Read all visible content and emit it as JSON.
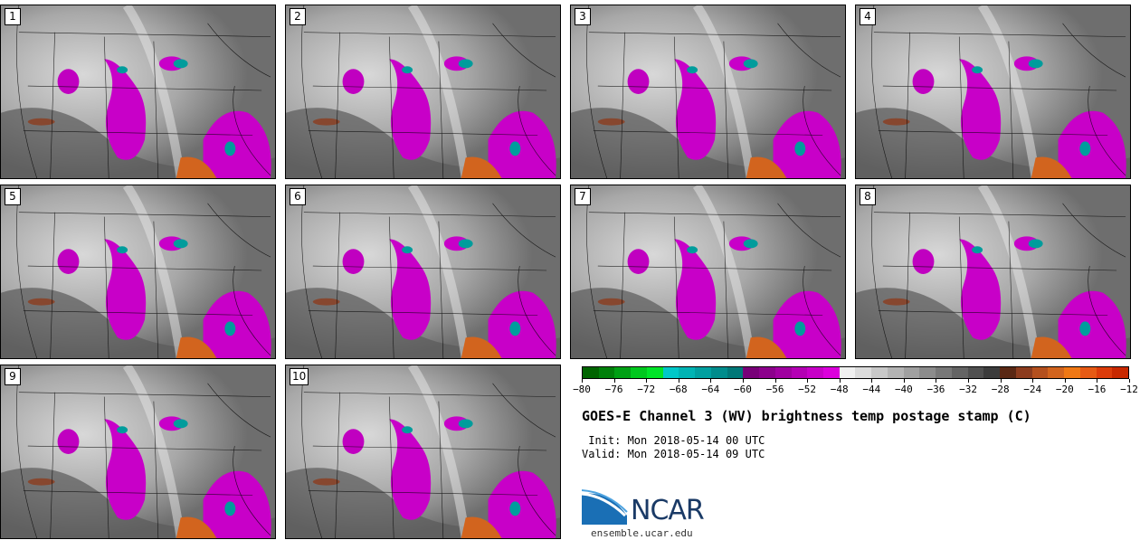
{
  "panels": [
    {
      "label": "1"
    },
    {
      "label": "2"
    },
    {
      "label": "3"
    },
    {
      "label": "4"
    },
    {
      "label": "5"
    },
    {
      "label": "6"
    },
    {
      "label": "7"
    },
    {
      "label": "8"
    },
    {
      "label": "9"
    },
    {
      "label": "10"
    }
  ],
  "colorbar": {
    "colors": [
      "#006400",
      "#00800a",
      "#00a014",
      "#00c81e",
      "#00e428",
      "#00c8c8",
      "#00b4b4",
      "#00a0a0",
      "#008c8c",
      "#007878",
      "#780078",
      "#8c008c",
      "#a000a0",
      "#b400b4",
      "#c800c8",
      "#dc00dc",
      "#f0f0f0",
      "#dcdcdc",
      "#c8c8c8",
      "#b4b4b4",
      "#a0a0a0",
      "#8c8c8c",
      "#787878",
      "#646464",
      "#505050",
      "#3c3c3c",
      "#5a2814",
      "#8c3c1e",
      "#b4501e",
      "#d2641e",
      "#f07814",
      "#e65a14",
      "#dc3c0a",
      "#c82800"
    ],
    "tick_labels": [
      "−80",
      "−76",
      "−72",
      "−68",
      "−64",
      "−60",
      "−56",
      "−52",
      "−48",
      "−44",
      "−40",
      "−36",
      "−32",
      "−28",
      "−24",
      "−20",
      "−16",
      "−12"
    ]
  },
  "title": "GOES-E Channel 3 (WV) brightness temp postage stamp (C)",
  "init": " Init: Mon 2018-05-14 00 UTC",
  "valid": "Valid: Mon 2018-05-14 09 UTC",
  "logo": {
    "word": "NCAR",
    "site": "ensemble.ucar.edu",
    "brand_color": "#1a3a66"
  }
}
